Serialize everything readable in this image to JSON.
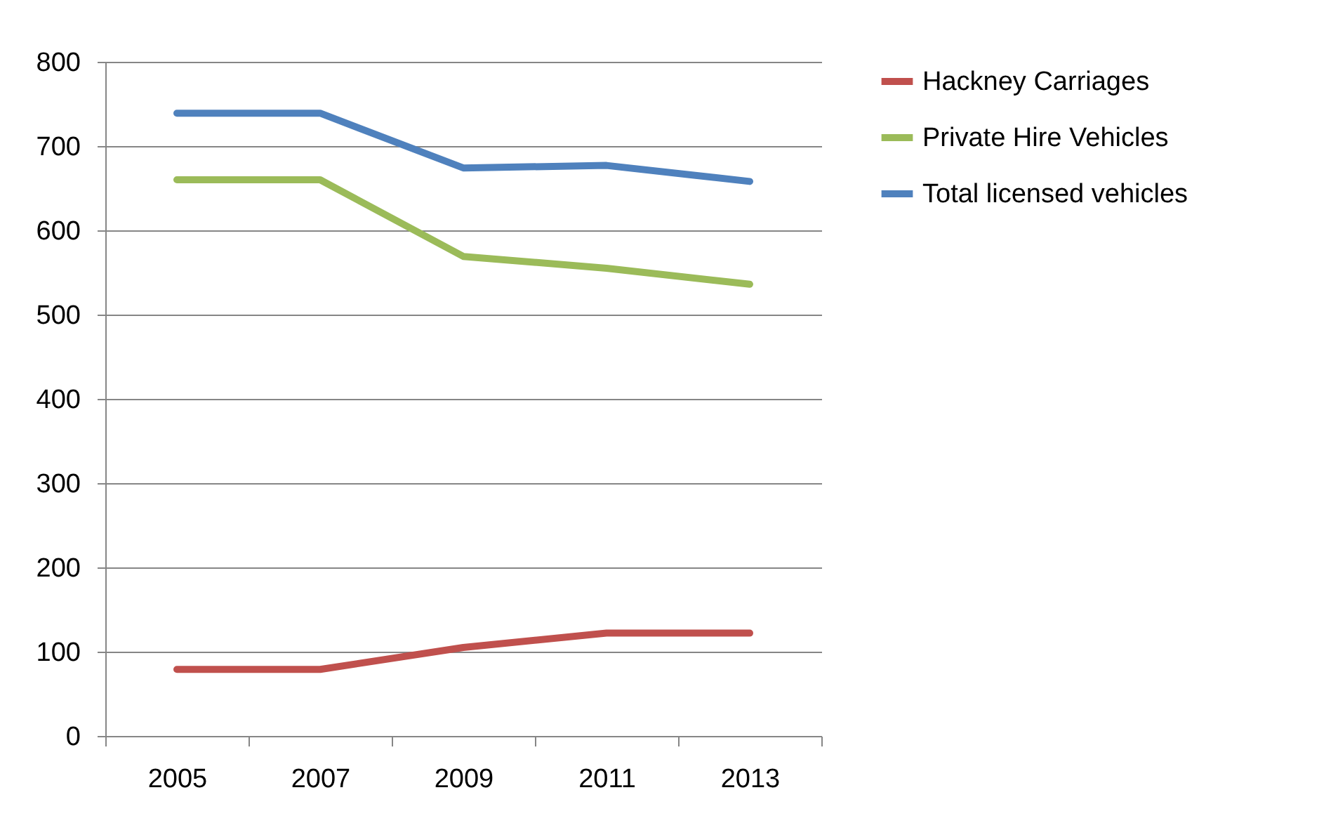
{
  "chart_data": {
    "type": "line",
    "categories": [
      "2005",
      "2007",
      "2009",
      "2011",
      "2013"
    ],
    "series": [
      {
        "name": "Hackney Carriages",
        "color": "#c0504d",
        "values": [
          79,
          79,
          105,
          122,
          122
        ]
      },
      {
        "name": "Private Hire Vehicles",
        "color": "#9bbb59",
        "values": [
          660,
          660,
          569,
          555,
          536
        ]
      },
      {
        "name": "Total licensed vehicles",
        "color": "#4f81bd",
        "values": [
          739,
          739,
          674,
          677,
          658
        ]
      }
    ],
    "ylim": [
      0,
      800
    ],
    "yticks": [
      0,
      100,
      200,
      300,
      400,
      500,
      600,
      700,
      800
    ],
    "grid": "y",
    "legend": "right",
    "marker": "none",
    "line_style": "solid"
  }
}
